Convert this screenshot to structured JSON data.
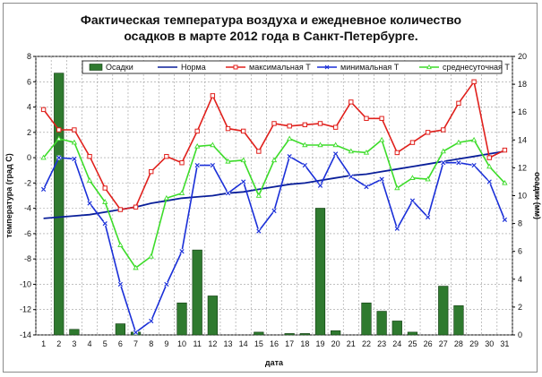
{
  "title_line1": "Фактическая температура воздуха и ежедневное количество",
  "title_line2": "осадков в марте 2012 года в Санкт-Петербурге.",
  "chart_data": {
    "type": "bar+line",
    "title": "Фактическая температура воздуха и ежедневное количество осадков в марте 2012 года в Санкт-Петербурге.",
    "xlabel": "дата",
    "ylabel_left": "температура (град С)",
    "ylabel_right": "осадки (мм)",
    "ylim_left": [
      -14,
      8
    ],
    "ylim_right": [
      0,
      20
    ],
    "yticks_left": [
      "-14",
      "-12",
      "-10",
      "-8",
      "-6",
      "-4",
      "-2",
      "0",
      "2",
      "4",
      "6",
      "8"
    ],
    "yticks_right": [
      "0",
      "2",
      "4",
      "6",
      "8",
      "10",
      "12",
      "14",
      "16",
      "18",
      "20"
    ],
    "categories": [
      "1",
      "2",
      "3",
      "4",
      "5",
      "6",
      "7",
      "8",
      "9",
      "10",
      "11",
      "12",
      "13",
      "14",
      "15",
      "16",
      "17",
      "18",
      "19",
      "20",
      "21",
      "22",
      "23",
      "24",
      "25",
      "26",
      "27",
      "28",
      "29",
      "30",
      "31"
    ],
    "grid": true,
    "legend": "top",
    "series": [
      {
        "name": "Осадки",
        "type": "bar",
        "axis": "right",
        "color": "#2f7a2f",
        "values": [
          0,
          18.8,
          0.4,
          0,
          0,
          0.8,
          0.2,
          0,
          0,
          2.3,
          6.1,
          2.8,
          0,
          0,
          0.2,
          0,
          0.1,
          0.1,
          9.1,
          0.3,
          0,
          2.3,
          1.7,
          1,
          0.2,
          0,
          3.5,
          2.1,
          0,
          0,
          0
        ]
      },
      {
        "name": "Норма",
        "type": "line",
        "axis": "left",
        "color": "#0a1f9a",
        "values": [
          -4.8,
          -4.7,
          -4.6,
          -4.5,
          -4.3,
          -4.1,
          -3.9,
          -3.6,
          -3.4,
          -3.2,
          -3.1,
          -3,
          -2.8,
          -2.7,
          -2.5,
          -2.3,
          -2.1,
          -2,
          -1.8,
          -1.6,
          -1.4,
          -1.3,
          -1.1,
          -0.9,
          -0.7,
          -0.5,
          -0.3,
          -0.1,
          0.1,
          0.3,
          0.5
        ]
      },
      {
        "name": "максимальная Т",
        "type": "line",
        "axis": "left",
        "color": "#e0201c",
        "marker": "square",
        "values": [
          3.8,
          2.2,
          2.2,
          0.1,
          -2.4,
          -4.1,
          -3.9,
          -1.1,
          0.1,
          -0.4,
          2.1,
          4.9,
          2.3,
          2.1,
          0.5,
          2.7,
          2.5,
          2.6,
          2.7,
          2.4,
          4.4,
          3.1,
          3.1,
          0.4,
          1.2,
          2,
          2.2,
          4.3,
          6,
          0,
          0.6
        ]
      },
      {
        "name": "минимальная Т",
        "type": "line",
        "axis": "left",
        "color": "#1a2fd8",
        "marker": "x",
        "values": [
          -2.5,
          0,
          -0.1,
          -3.6,
          -5.2,
          -10,
          -13.8,
          -12.9,
          -10,
          -7.4,
          -0.6,
          -0.6,
          -2.8,
          -1.9,
          -5.8,
          -4.2,
          0.1,
          -0.6,
          -2.2,
          0.3,
          -1.5,
          -2.3,
          -1.7,
          -5.6,
          -3.4,
          -4.7,
          -0.4,
          -0.4,
          -0.6,
          -1.9,
          -4.9
        ]
      },
      {
        "name": "среднесуточная Т",
        "type": "line",
        "axis": "left",
        "color": "#3ddc2a",
        "marker": "triangle",
        "values": [
          0,
          1.5,
          1.2,
          -1.8,
          -3.5,
          -6.9,
          -8.7,
          -7.8,
          -3.2,
          -2.8,
          0.9,
          1,
          -0.3,
          -0.2,
          -3,
          -0.2,
          1.5,
          1,
          1,
          1,
          0.5,
          0.4,
          1.4,
          -2.4,
          -1.6,
          -1.7,
          0.5,
          1.2,
          1.4,
          -0.7,
          -2
        ]
      }
    ]
  }
}
